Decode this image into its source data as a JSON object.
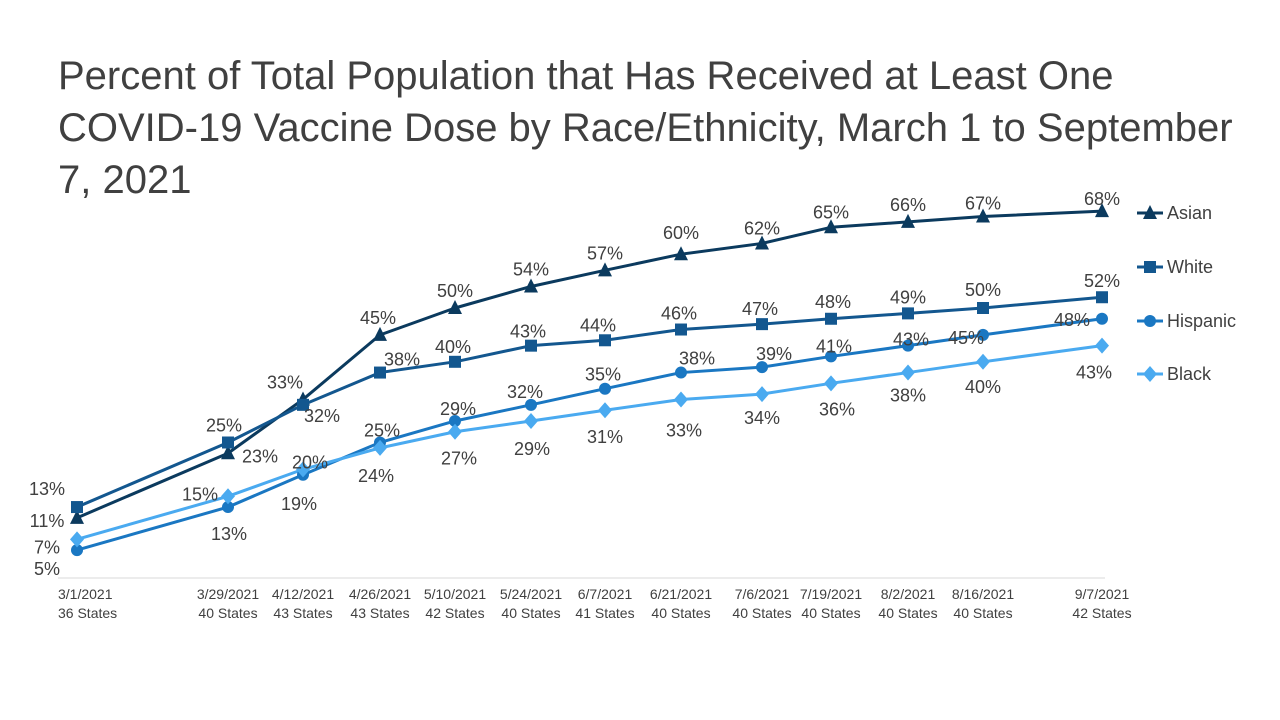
{
  "chart_data": {
    "type": "line",
    "title": "Percent of Total Population that Has Received at Least One COVID-19 Vaccine Dose by Race/Ethnicity, March 1 to September 7, 2021",
    "xlabel": "",
    "ylabel": "",
    "ylim": [
      0,
      75
    ],
    "grid": false,
    "legend_position": "right",
    "x": [
      "2021-03-01",
      "2021-03-29",
      "2021-04-12",
      "2021-04-26",
      "2021-05-10",
      "2021-05-24",
      "2021-06-07",
      "2021-06-21",
      "2021-07-06",
      "2021-07-19",
      "2021-08-02",
      "2021-08-16",
      "2021-09-07"
    ],
    "categories": [
      {
        "date": "3/1/2021",
        "states": "36 States"
      },
      {
        "date": "3/29/2021",
        "states": "40 States"
      },
      {
        "date": "4/12/2021",
        "states": "43 States"
      },
      {
        "date": "4/26/2021",
        "states": "43 States"
      },
      {
        "date": "5/10/2021",
        "states": "42 States"
      },
      {
        "date": "5/24/2021",
        "states": "40 States"
      },
      {
        "date": "6/7/2021",
        "states": "41 States"
      },
      {
        "date": "6/21/2021",
        "states": "40 States"
      },
      {
        "date": "7/6/2021",
        "states": "40 States"
      },
      {
        "date": "7/19/2021",
        "states": "40 States"
      },
      {
        "date": "8/2/2021",
        "states": "40 States"
      },
      {
        "date": "8/16/2021",
        "states": "40 States"
      },
      {
        "date": "9/7/2021",
        "states": "42 States"
      }
    ],
    "series": [
      {
        "name": "Asian",
        "color": "#0b3a5e",
        "marker": "triangle",
        "values": [
          11,
          23,
          33,
          45,
          50,
          54,
          57,
          60,
          62,
          65,
          66,
          67,
          68
        ],
        "labels": [
          "11%",
          "23%",
          "33%",
          "45%",
          "50%",
          "54%",
          "57%",
          "60%",
          "62%",
          "65%",
          "66%",
          "67%",
          "68%"
        ]
      },
      {
        "name": "White",
        "color": "#13578f",
        "marker": "square",
        "values": [
          13,
          25,
          32,
          38,
          40,
          43,
          44,
          46,
          47,
          48,
          49,
          50,
          52
        ],
        "labels": [
          "13%",
          "25%",
          "32%",
          "38%",
          "40%",
          "43%",
          "44%",
          "46%",
          "47%",
          "48%",
          "49%",
          "50%",
          "52%"
        ]
      },
      {
        "name": "Hispanic",
        "color": "#1a77c2",
        "marker": "circle",
        "values": [
          5,
          13,
          19,
          25,
          29,
          32,
          35,
          38,
          39,
          41,
          43,
          45,
          48
        ],
        "labels": [
          "5%",
          "13%",
          "19%",
          "25%",
          "29%",
          "32%",
          "35%",
          "38%",
          "39%",
          "41%",
          "43%",
          "45%",
          "48%"
        ]
      },
      {
        "name": "Black",
        "color": "#4aaaf0",
        "marker": "diamond",
        "values": [
          7,
          15,
          20,
          24,
          27,
          29,
          31,
          33,
          34,
          36,
          38,
          40,
          43
        ],
        "labels": [
          "7%",
          "15%",
          "20%",
          "24%",
          "27%",
          "29%",
          "31%",
          "33%",
          "34%",
          "36%",
          "38%",
          "40%",
          "43%"
        ]
      }
    ]
  }
}
